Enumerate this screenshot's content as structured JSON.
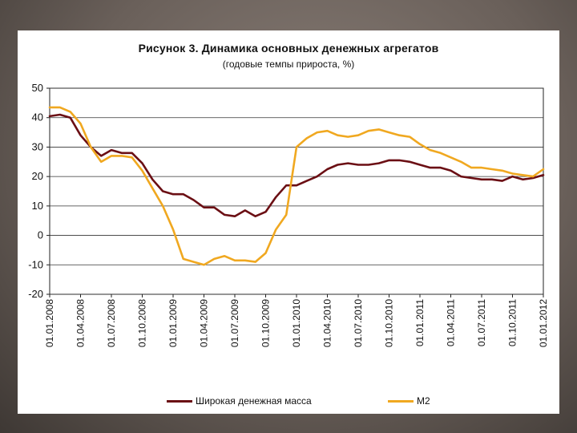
{
  "chart_data": {
    "type": "line",
    "title": "Рисунок 3. Динамика основных денежных агрегатов",
    "subtitle": "(годовые темпы прироста, %)",
    "xlabel": "",
    "ylabel": "",
    "ylim": [
      -20,
      50
    ],
    "yticks": [
      "50",
      "40",
      "30",
      "20",
      "10",
      "0",
      "-10",
      "-20"
    ],
    "x_tick_labels": [
      "01.01.2008",
      "01.04.2008",
      "01.07.2008",
      "01.10.2008",
      "01.01.2009",
      "01.04.2009",
      "01.07.2009",
      "01.10.2009",
      "01.01.2010",
      "01.04.2010",
      "01.07.2010",
      "01.10.2010",
      "01.01.2011",
      "01.04.2011",
      "01.07.2011",
      "01.10.2011",
      "01.01.2012"
    ],
    "x": [
      "2008-01",
      "2008-02",
      "2008-03",
      "2008-04",
      "2008-05",
      "2008-06",
      "2008-07",
      "2008-08",
      "2008-09",
      "2008-10",
      "2008-11",
      "2008-12",
      "2009-01",
      "2009-02",
      "2009-03",
      "2009-04",
      "2009-05",
      "2009-06",
      "2009-07",
      "2009-08",
      "2009-09",
      "2009-10",
      "2009-11",
      "2009-12",
      "2010-01",
      "2010-02",
      "2010-03",
      "2010-04",
      "2010-05",
      "2010-06",
      "2010-07",
      "2010-08",
      "2010-09",
      "2010-10",
      "2010-11",
      "2010-12",
      "2011-01",
      "2011-02",
      "2011-03",
      "2011-04",
      "2011-05",
      "2011-06",
      "2011-07",
      "2011-08",
      "2011-09",
      "2011-10",
      "2011-11",
      "2011-12",
      "2012-01"
    ],
    "grid": true,
    "legend_position": "bottom",
    "series": [
      {
        "name": "Широкая денежная масса",
        "color": "#6b0f14",
        "values": [
          40.5,
          41,
          40,
          34,
          30,
          27,
          29,
          28,
          28,
          24.5,
          19,
          15,
          14,
          14,
          12,
          9.5,
          9.5,
          7,
          6.5,
          8.5,
          6.5,
          8,
          13,
          17,
          17,
          18.5,
          20,
          22.5,
          24,
          24.5,
          24,
          24,
          24.5,
          25.5,
          25.5,
          25,
          24,
          23,
          23,
          22,
          20,
          19.5,
          19,
          19,
          18.5,
          20,
          19,
          19.5,
          20.5
        ]
      },
      {
        "name": "M2",
        "color": "#f0a820",
        "values": [
          43.5,
          43.5,
          42,
          38,
          30,
          25,
          27,
          27,
          26.5,
          22,
          16,
          10,
          2,
          -8,
          -9,
          -10,
          -8,
          -7,
          -8.5,
          -8.5,
          -9,
          -6,
          2,
          7,
          30,
          33,
          35,
          35.5,
          34,
          33.5,
          34,
          35.5,
          36,
          35,
          34,
          33.5,
          31,
          29,
          28,
          26.5,
          25,
          23,
          23,
          22.5,
          22,
          21,
          20.5,
          20,
          22.5
        ]
      }
    ]
  }
}
